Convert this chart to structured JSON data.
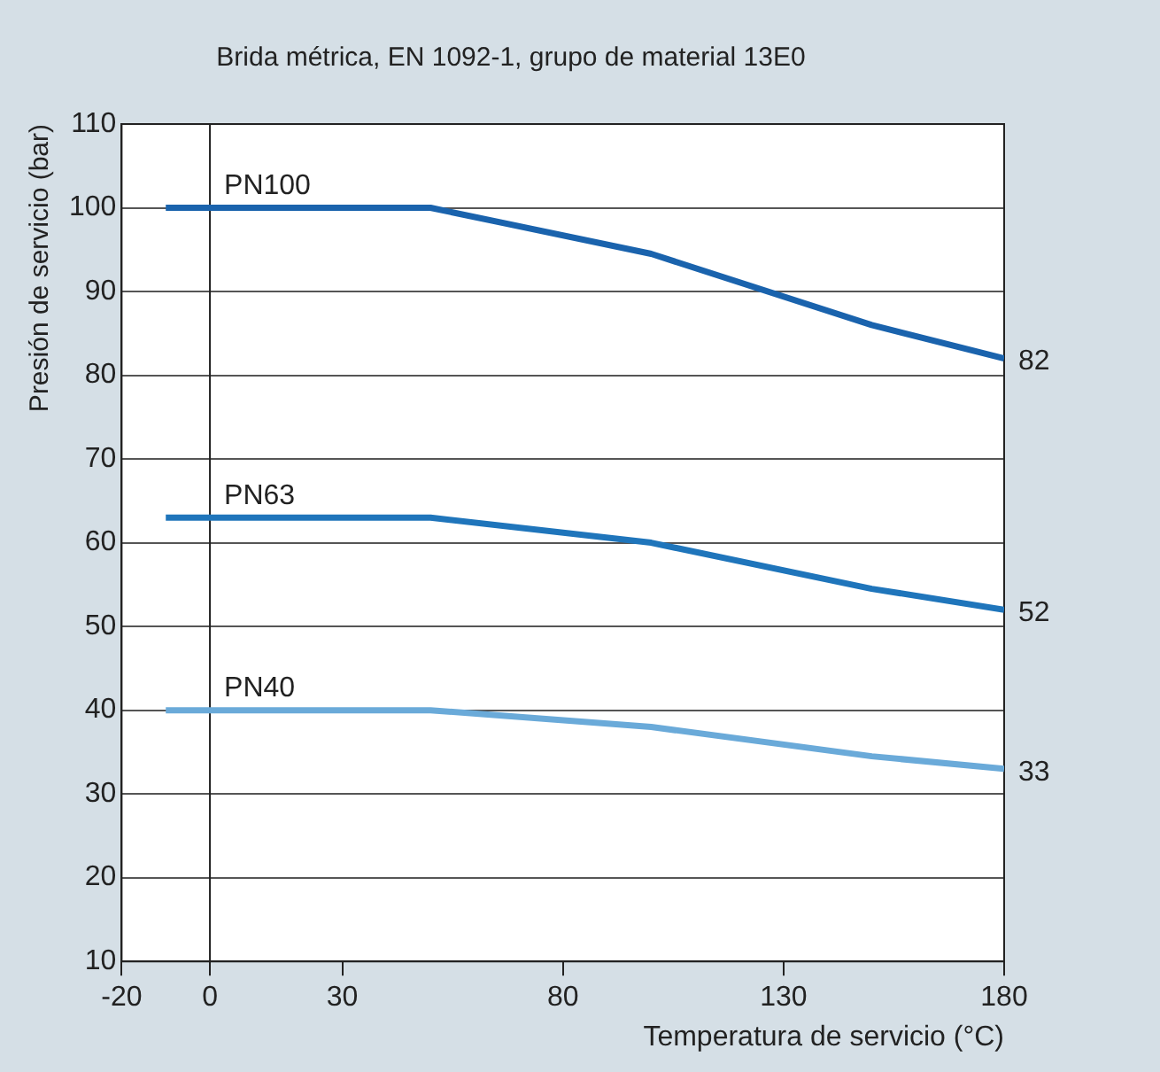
{
  "chart_data": {
    "type": "line",
    "title": "Brida métrica, EN 1092-1, grupo de material 13E0",
    "xlabel": "Temperatura de servicio (°C)",
    "ylabel": "Presión de servicio (bar)",
    "x": [
      -10,
      50,
      100,
      150,
      180
    ],
    "series": [
      {
        "name": "PN100",
        "color": "#1a63ad",
        "values": [
          100,
          100,
          94.5,
          86,
          82
        ],
        "value_labels": [
          null,
          null,
          null,
          null,
          "82"
        ]
      },
      {
        "name": "PN63",
        "color": "#1f75bb",
        "values": [
          63,
          63,
          60,
          54.5,
          52
        ],
        "value_labels": [
          null,
          null,
          null,
          null,
          "52"
        ]
      },
      {
        "name": "PN40",
        "color": "#6aaad9",
        "values": [
          40,
          40,
          38,
          34.5,
          33
        ],
        "value_labels": [
          null,
          null,
          null,
          null,
          "33"
        ]
      }
    ],
    "xlim": [
      -20,
      180
    ],
    "xticks": [
      -20,
      0,
      30,
      80,
      130,
      180
    ],
    "ylim": [
      10,
      110
    ],
    "yticks": [
      10,
      20,
      30,
      40,
      50,
      60,
      70,
      80,
      90,
      100,
      110
    ],
    "ref_lines": [
      {
        "axis": "x",
        "value": 0,
        "color": "#222222"
      }
    ],
    "grid": "y",
    "legend": false,
    "marker": "none",
    "line_style": "solid"
  }
}
